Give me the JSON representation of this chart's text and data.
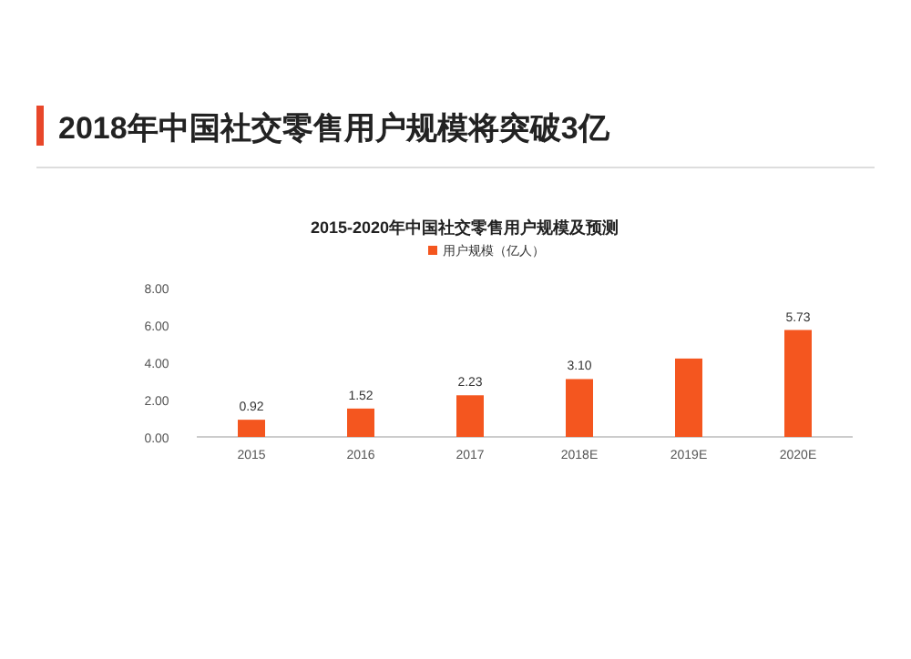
{
  "chart_data": {
    "type": "bar",
    "title": "2018年中国社交零售用户规模将突破3亿",
    "subtitle": "2015-2020年中国社交零售用户规模及预测",
    "categories": [
      "2015",
      "2016",
      "2017",
      "2018E",
      "2019E",
      "2020E"
    ],
    "series": [
      {
        "name": "用户规模（亿人）",
        "color": "#f4561f",
        "values": [
          0.92,
          1.52,
          2.23,
          3.1,
          4.2,
          5.73
        ],
        "value_labels": [
          "0.92",
          "1.52",
          "2.23",
          "3.10",
          null,
          "5.73"
        ]
      }
    ],
    "ylim": [
      0,
      8
    ],
    "yticks": [
      {
        "value": 0,
        "label": "0.00"
      },
      {
        "value": 2,
        "label": "2.00"
      },
      {
        "value": 4,
        "label": "4.00"
      },
      {
        "value": 6,
        "label": "6.00"
      },
      {
        "value": 8,
        "label": "8.00"
      }
    ],
    "legend": "top",
    "grid": false
  }
}
